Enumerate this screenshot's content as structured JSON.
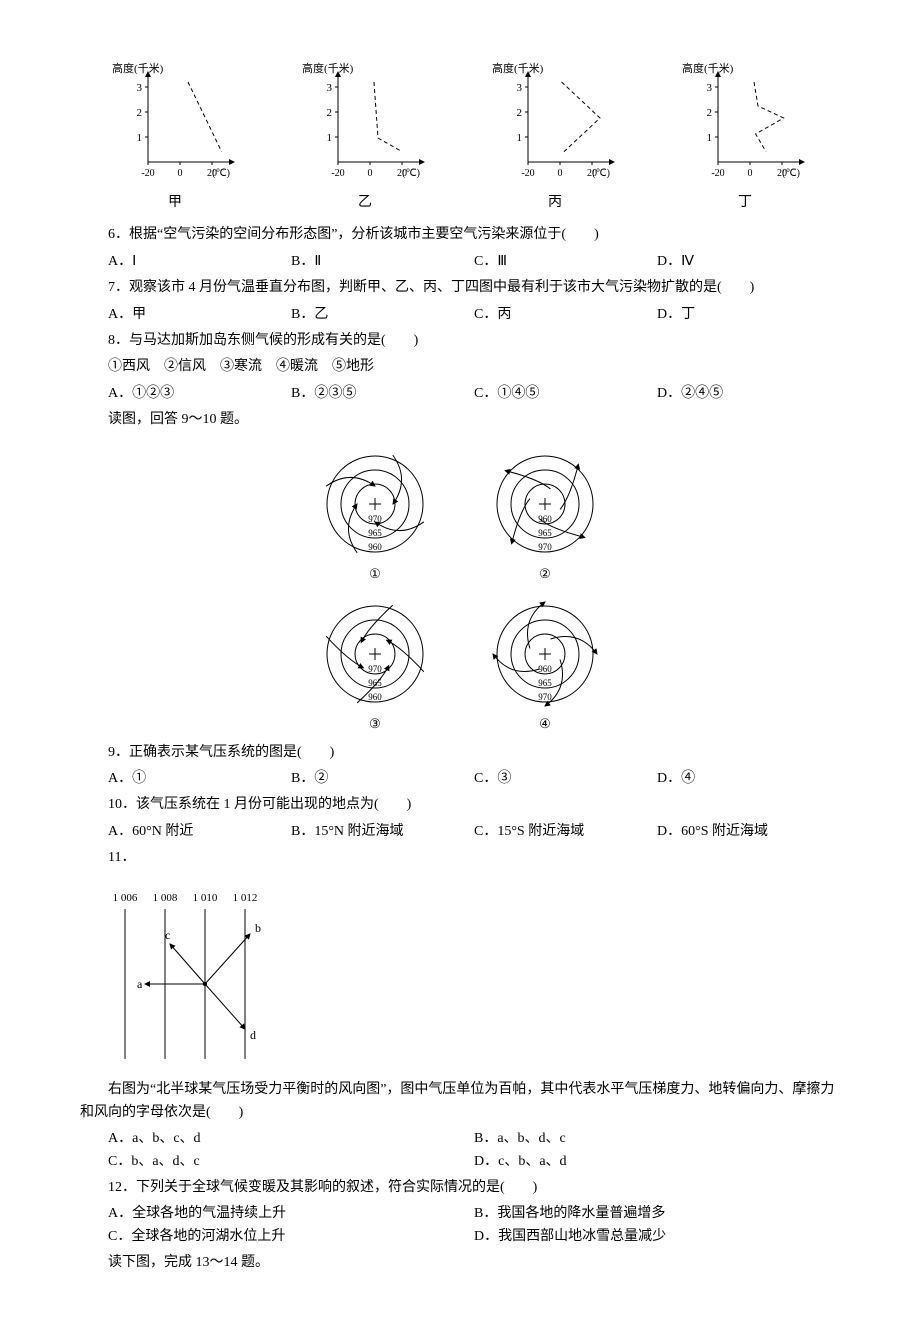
{
  "topCharts": {
    "ylabel": "高度(千米)",
    "xunit": "(℃)",
    "yticks": [
      1,
      2,
      3
    ],
    "xticks": [
      -20,
      0,
      20
    ],
    "captions": [
      "甲",
      "乙",
      "丙",
      "丁"
    ],
    "width": 130,
    "height": 130,
    "axisColor": "#000",
    "lineDash": "4,3",
    "panels": [
      {
        "pts": [
          [
            0.5,
            0.05
          ],
          [
            0.92,
            0.92
          ]
        ]
      },
      {
        "pts": [
          [
            0.45,
            0.05
          ],
          [
            0.5,
            0.75
          ],
          [
            0.8,
            0.92
          ]
        ]
      },
      {
        "pts": [
          [
            0.42,
            0.05
          ],
          [
            0.9,
            0.5
          ],
          [
            0.45,
            0.92
          ]
        ]
      },
      {
        "pts": [
          [
            0.45,
            0.05
          ],
          [
            0.5,
            0.35
          ],
          [
            0.82,
            0.5
          ],
          [
            0.47,
            0.7
          ],
          [
            0.6,
            0.92
          ]
        ]
      }
    ]
  },
  "q6": {
    "text": "6．根据“空气污染的空间分布形态图”，分析该城市主要空气污染来源位于(　　)",
    "opts": [
      "A．Ⅰ",
      "B．Ⅱ",
      "C．Ⅲ",
      "D．Ⅳ"
    ]
  },
  "q7": {
    "text": "7．观察该市 4 月份气温垂直分布图，判断甲、乙、丙、丁四图中最有利于该市大气污染物扩散的是(　　)",
    "opts": [
      "A．甲",
      "B．乙",
      "C．丙",
      "D．丁"
    ]
  },
  "q8": {
    "text": "8．与马达加斯加岛东侧气候的形成有关的是(　　)",
    "sub": "①西风　②信风　③寒流　④暖流　⑤地形",
    "opts": [
      "A．①②③",
      "B．②③⑤",
      "C．①④⑤",
      "D．②④⑤"
    ]
  },
  "lead910": "读图，回答 9～10 题。",
  "spiralFig": {
    "size": 140,
    "stroke": "#000",
    "labels": [
      "①",
      "②",
      "③",
      "④"
    ],
    "panels": [
      {
        "rings": [
          "970",
          "965",
          "960"
        ],
        "order": "in-out",
        "dir": "ccw",
        "inward": true
      },
      {
        "rings": [
          "960",
          "965",
          "970"
        ],
        "order": "out-in",
        "dir": "cw",
        "inward": false
      },
      {
        "rings": [
          "970",
          "965",
          "960"
        ],
        "order": "in-out",
        "dir": "cw",
        "inward": true
      },
      {
        "rings": [
          "960",
          "965",
          "970"
        ],
        "order": "out-in",
        "dir": "ccw",
        "inward": false
      }
    ]
  },
  "q9": {
    "text": "9．正确表示某气压系统的图是(　　)",
    "opts": [
      "A．①",
      "B．②",
      "C．③",
      "D．④"
    ]
  },
  "q10": {
    "text": "10．该气压系统在 1 月份可能出现的地点为(　　)",
    "opts": [
      "A．60°N 附近",
      "B．15°N 附近海域",
      "C．15°S 附近海域",
      "D．60°S 附近海域"
    ]
  },
  "q11lead": "11．",
  "windFig": {
    "isobars": [
      "1 006",
      "1 008",
      "1 010",
      "1 012"
    ],
    "arrows": [
      "a",
      "b",
      "c",
      "d"
    ],
    "stroke": "#000"
  },
  "q11text": "右图为“北半球某气压场受力平衡时的风向图”，图中气压单位为百帕，其中代表水平气压梯度力、地转偏向力、摩擦力和风向的字母依次是(　　)",
  "q11opts": [
    "A．a、b、c、d",
    "B．a、b、d、c",
    "C．b、a、d、c",
    "D．c、b、a、d"
  ],
  "q12": {
    "text": "12．下列关于全球气候变暖及其影响的叙述，符合实际情况的是(　　)",
    "opts": [
      "A．全球各地的气温持续上升",
      "B．我国各地的降水量普遍增多",
      "C．全球各地的河湖水位上升",
      "D．我国西部山地冰雪总量减少"
    ]
  },
  "lead1314": "读下图，完成 13～14 题。"
}
